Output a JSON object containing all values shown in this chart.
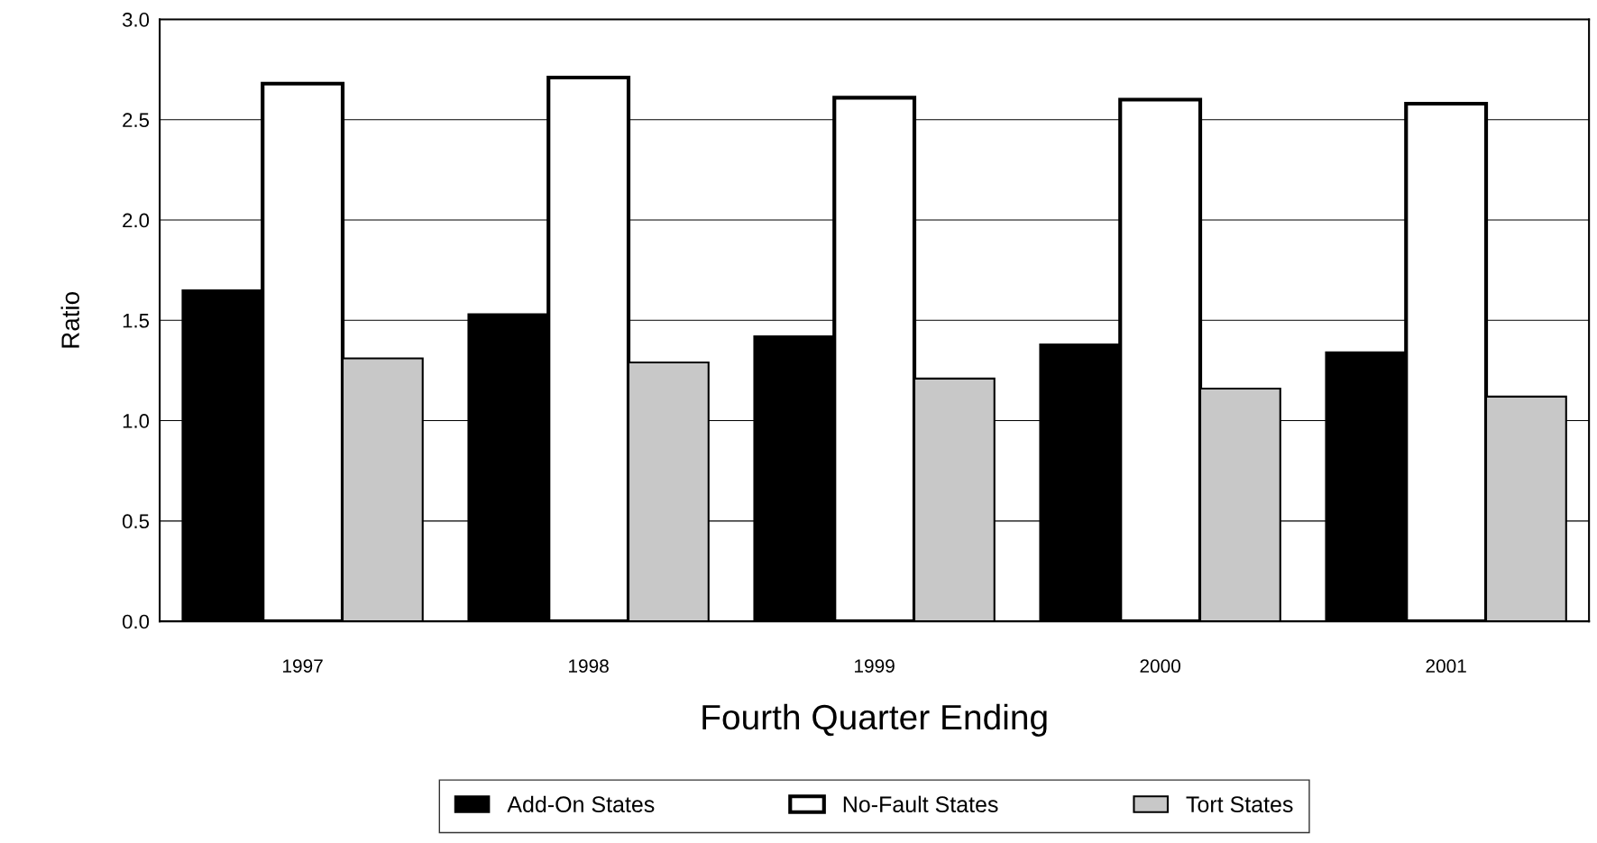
{
  "chart_data": {
    "type": "bar",
    "xlabel": "Fourth Quarter Ending",
    "ylabel": "Ratio",
    "categories": [
      "1997",
      "1998",
      "1999",
      "2000",
      "2001"
    ],
    "series": [
      {
        "name": "Add-On States",
        "color": "#000000",
        "values": [
          1.65,
          1.53,
          1.42,
          1.38,
          1.34
        ]
      },
      {
        "name": "No-Fault States",
        "color": "#ffffff",
        "values": [
          2.68,
          2.71,
          2.61,
          2.6,
          2.58
        ]
      },
      {
        "name": "Tort States",
        "color": "#c8c8c8",
        "values": [
          1.31,
          1.29,
          1.21,
          1.16,
          1.12
        ]
      }
    ],
    "ylim": [
      0,
      3.0
    ],
    "yticks": [
      {
        "value": 0,
        "label": "0.0"
      },
      {
        "value": 0.5,
        "label": "0.5"
      },
      {
        "value": 1.0,
        "label": "1.0"
      },
      {
        "value": 1.5,
        "label": "1.5"
      },
      {
        "value": 2.0,
        "label": "2.0"
      },
      {
        "value": 2.5,
        "label": "2.5"
      },
      {
        "value": 3.0,
        "label": "3.0"
      }
    ],
    "grid": "y",
    "legend": "bottom"
  }
}
